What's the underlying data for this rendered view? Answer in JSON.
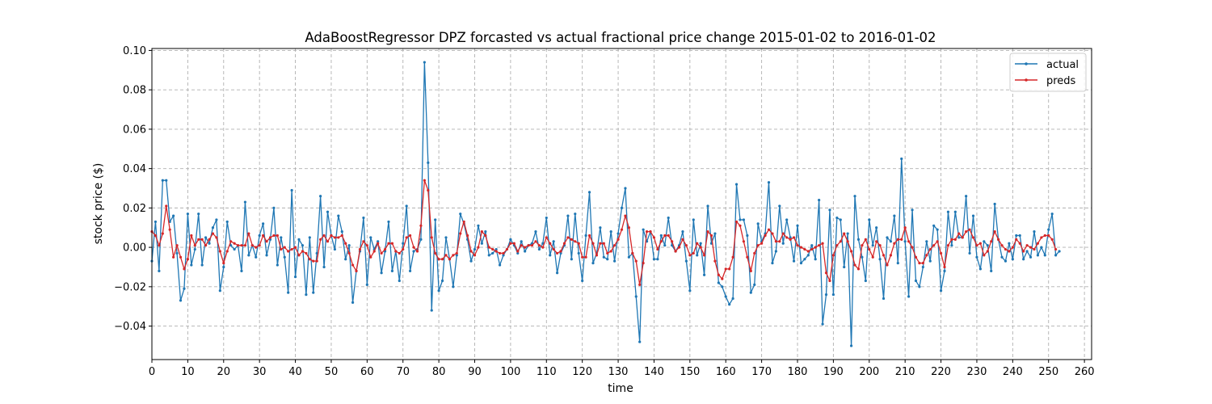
{
  "chart_data": {
    "type": "line",
    "title": "AdaBoostRegressor DPZ forcasted vs actual fractional price change 2015-01-02 to 2016-01-02",
    "xlabel": "time",
    "ylabel": "stock price ($)",
    "xlim": [
      0,
      262
    ],
    "ylim": [
      -0.057,
      0.101
    ],
    "xticks": [
      0,
      10,
      20,
      30,
      40,
      50,
      60,
      70,
      80,
      90,
      100,
      110,
      120,
      130,
      140,
      150,
      160,
      170,
      180,
      190,
      200,
      210,
      220,
      230,
      240,
      250,
      260
    ],
    "yticks": [
      -0.04,
      -0.02,
      0.0,
      0.02,
      0.04,
      0.06,
      0.08,
      0.1
    ],
    "ytick_labels": [
      "−0.04",
      "−0.02",
      "0.00",
      "0.02",
      "0.04",
      "0.06",
      "0.08",
      "0.10"
    ],
    "grid": true,
    "legend_position": "top-right",
    "series": [
      {
        "name": "actual",
        "color": "#1f77b4",
        "values": [
          -0.007,
          0.013,
          -0.012,
          0.034,
          0.034,
          0.013,
          0.016,
          -0.003,
          -0.027,
          -0.021,
          0.017,
          -0.009,
          -0.001,
          0.017,
          -0.009,
          0.005,
          0.002,
          0.01,
          0.014,
          -0.022,
          -0.01,
          0.013,
          0.001,
          -0.001,
          0.001,
          -0.012,
          0.023,
          -0.004,
          0.001,
          -0.005,
          0.006,
          0.012,
          -0.004,
          0.004,
          0.02,
          -0.009,
          0.005,
          -0.005,
          -0.023,
          0.029,
          -0.015,
          0.004,
          0.001,
          -0.024,
          0.005,
          -0.023,
          -0.003,
          0.026,
          -0.01,
          0.018,
          0.006,
          -0.001,
          0.016,
          0.008,
          -0.006,
          0.001,
          -0.028,
          -0.012,
          -0.002,
          0.015,
          -0.019,
          0.005,
          -0.001,
          0.003,
          -0.013,
          -0.002,
          0.013,
          -0.012,
          -0.002,
          -0.017,
          0.002,
          0.021,
          -0.012,
          -0.002,
          -0.001,
          0.004,
          0.094,
          0.043,
          -0.032,
          0.014,
          -0.022,
          -0.017,
          0.005,
          -0.006,
          -0.02,
          -0.004,
          0.017,
          0.012,
          0.004,
          -0.007,
          -0.001,
          0.011,
          0.002,
          0.008,
          -0.004,
          -0.003,
          -0.001,
          -0.009,
          -0.004,
          -0.001,
          0.004,
          0.001,
          -0.003,
          0.003,
          -0.002,
          0.001,
          0.002,
          0.008,
          -0.001,
          0.002,
          0.015,
          -0.004,
          0.003,
          -0.013,
          -0.003,
          0.001,
          0.016,
          -0.006,
          0.017,
          -0.003,
          -0.017,
          0.006,
          0.028,
          -0.008,
          -0.003,
          0.01,
          -0.005,
          -0.006,
          0.008,
          -0.007,
          0.007,
          0.02,
          0.03,
          -0.005,
          -0.003,
          -0.025,
          -0.048,
          0.009,
          0.003,
          0.008,
          -0.006,
          -0.006,
          0.006,
          0.001,
          0.015,
          0.001,
          -0.002,
          0.001,
          0.008,
          -0.007,
          -0.022,
          0.014,
          -0.004,
          0.002,
          -0.014,
          0.021,
          0.002,
          0.007,
          -0.018,
          -0.02,
          -0.025,
          -0.029,
          -0.026,
          0.032,
          0.014,
          0.014,
          0.006,
          -0.023,
          -0.019,
          0.012,
          0.003,
          0.007,
          0.033,
          -0.008,
          -0.002,
          0.021,
          0.002,
          0.014,
          0.005,
          -0.007,
          0.011,
          -0.008,
          -0.006,
          -0.004,
          0.001,
          -0.006,
          0.024,
          -0.039,
          -0.024,
          0.019,
          -0.024,
          0.015,
          0.014,
          -0.01,
          0.007,
          -0.05,
          0.026,
          0.004,
          -0.005,
          -0.017,
          0.014,
          0.001,
          0.01,
          -0.006,
          -0.026,
          0.005,
          0.003,
          0.016,
          -0.008,
          0.045,
          0.003,
          -0.025,
          0.019,
          -0.017,
          -0.02,
          -0.01,
          0.003,
          -0.007,
          0.011,
          0.009,
          -0.022,
          -0.012,
          0.018,
          0.001,
          0.018,
          0.005,
          0.005,
          0.026,
          -0.003,
          0.016,
          -0.005,
          -0.011,
          0.003,
          0.001,
          -0.012,
          0.022,
          0.004,
          -0.005,
          -0.007,
          0.002,
          -0.006,
          0.006,
          0.006,
          -0.006,
          -0.002,
          -0.005,
          0.008,
          -0.004,
          0.0,
          -0.004,
          0.009,
          0.017,
          -0.004,
          -0.002
        ]
      },
      {
        "name": "preds",
        "color": "#d62728",
        "values": [
          0.008,
          0.006,
          0.001,
          0.007,
          0.021,
          0.009,
          -0.005,
          0.001,
          -0.005,
          -0.011,
          -0.006,
          0.006,
          0.001,
          0.004,
          0.004,
          0.001,
          0.004,
          0.007,
          0.005,
          -0.002,
          -0.008,
          -0.002,
          0.003,
          0.002,
          0.001,
          0.001,
          0.001,
          0.007,
          0.001,
          0.0,
          0.001,
          0.006,
          0.003,
          0.005,
          0.006,
          0.006,
          -0.001,
          0.0,
          -0.002,
          -0.001,
          0.0,
          -0.004,
          -0.002,
          -0.003,
          -0.006,
          -0.007,
          -0.007,
          0.004,
          0.006,
          0.003,
          0.006,
          0.005,
          0.005,
          0.006,
          0.002,
          -0.003,
          -0.009,
          -0.012,
          -0.001,
          0.003,
          0.001,
          -0.005,
          -0.002,
          0.002,
          -0.003,
          -0.001,
          0.002,
          0.002,
          -0.002,
          -0.003,
          -0.001,
          0.005,
          0.006,
          0.0,
          -0.002,
          0.011,
          0.034,
          0.029,
          0.005,
          -0.003,
          -0.006,
          -0.006,
          -0.004,
          -0.006,
          -0.004,
          -0.003,
          0.007,
          0.013,
          0.006,
          -0.002,
          -0.004,
          0.0,
          0.008,
          0.006,
          0.0,
          -0.001,
          -0.002,
          -0.003,
          -0.003,
          -0.001,
          0.002,
          0.002,
          -0.002,
          0.001,
          0.0,
          0.001,
          0.001,
          0.003,
          0.001,
          0.0,
          0.005,
          0.002,
          -0.001,
          -0.003,
          -0.002,
          0.002,
          0.005,
          0.004,
          0.003,
          0.002,
          -0.005,
          -0.005,
          0.006,
          0.002,
          -0.004,
          0.002,
          0.002,
          -0.003,
          -0.002,
          0.001,
          0.004,
          0.009,
          0.016,
          0.01,
          -0.003,
          -0.007,
          -0.019,
          -0.008,
          0.008,
          0.008,
          0.005,
          -0.001,
          0.003,
          0.006,
          0.006,
          0.003,
          -0.002,
          0.0,
          0.004,
          0.001,
          -0.004,
          -0.003,
          0.002,
          0.0,
          -0.004,
          0.008,
          0.006,
          -0.007,
          -0.014,
          -0.016,
          -0.011,
          -0.011,
          -0.005,
          0.013,
          0.011,
          0.003,
          -0.005,
          -0.012,
          -0.003,
          0.001,
          0.002,
          0.006,
          0.009,
          0.007,
          0.003,
          0.003,
          0.007,
          0.005,
          0.004,
          0.005,
          0.001,
          0.0,
          -0.001,
          -0.002,
          -0.001,
          0.0,
          0.001,
          0.002,
          -0.013,
          -0.017,
          -0.004,
          0.001,
          0.003,
          0.007,
          0.003,
          -0.002,
          -0.009,
          -0.011,
          0.001,
          0.004,
          -0.001,
          -0.005,
          0.003,
          0.001,
          -0.004,
          -0.009,
          -0.004,
          0.002,
          0.004,
          0.004,
          0.01,
          0.003,
          0.0,
          -0.005,
          -0.008,
          -0.008,
          -0.004,
          -0.001,
          0.001,
          0.003,
          -0.003,
          -0.01,
          0.001,
          0.004,
          0.004,
          0.007,
          0.005,
          0.008,
          0.009,
          0.005,
          0.001,
          0.002,
          -0.004,
          -0.002,
          0.003,
          0.008,
          0.004,
          0.001,
          -0.001,
          -0.002,
          0.0,
          0.004,
          0.002,
          -0.002,
          0.001,
          0.0,
          -0.001,
          0.002,
          0.005,
          0.006,
          0.006,
          0.004,
          -0.001
        ]
      }
    ]
  }
}
